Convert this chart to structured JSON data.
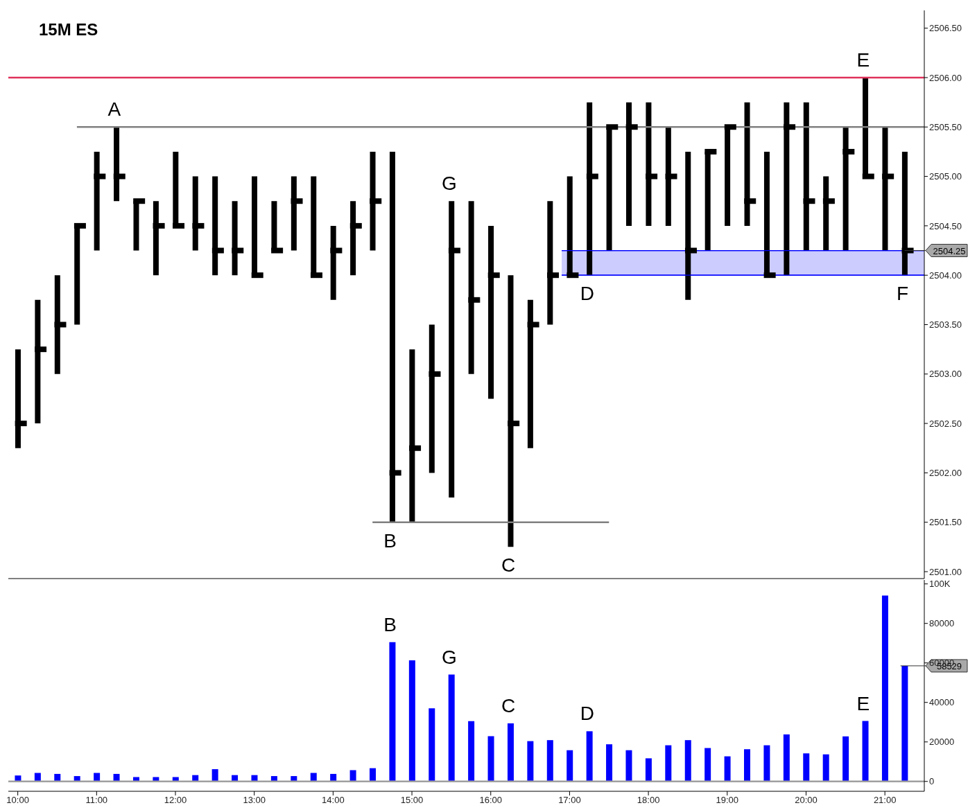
{
  "chart_data": [
    {
      "type": "bar",
      "title": "15M ES",
      "color": "#000000",
      "x": [
        10,
        10.25,
        10.5,
        10.75,
        11,
        11.25,
        11.5,
        11.75,
        12,
        12.25,
        12.5,
        12.75,
        13,
        13.25,
        13.5,
        13.75,
        14,
        14.25,
        14.5,
        14.75,
        15,
        15.25,
        15.5,
        15.75,
        16,
        16.25,
        16.5,
        16.75,
        17,
        17.25,
        17.5,
        17.75,
        18,
        18.25,
        18.5,
        18.75,
        19,
        19.25,
        19.5,
        19.75,
        20,
        20.25,
        20.5,
        20.75,
        21,
        21.25
      ],
      "base": [
        2502.25,
        2502.5,
        2503,
        2503.5,
        2504.25,
        2504.75,
        2504.25,
        2504,
        2504.5,
        2504.25,
        2504,
        2504,
        2504,
        2504.25,
        2504.25,
        2504,
        2503.75,
        2504,
        2504.25,
        2501.5,
        2501.5,
        2502,
        2501.75,
        2503,
        2502.75,
        2501.25,
        2502.25,
        2503.5,
        2504,
        2504,
        2504.25,
        2504.5,
        2504.5,
        2504.5,
        2503.75,
        2504.25,
        2504.5,
        2504.5,
        2504,
        2504,
        2504.25,
        2504.25,
        2504.25,
        2505,
        2504.25,
        2504
      ],
      "values": [
        1,
        1.25,
        1,
        1,
        1,
        0.75,
        0.5,
        0.75,
        0.75,
        0.75,
        1,
        0.75,
        1,
        0.5,
        0.75,
        1,
        0.75,
        0.75,
        1,
        3.75,
        1.75,
        1.5,
        3,
        1.75,
        1.75,
        2.75,
        1.5,
        1.25,
        1,
        1.75,
        1.25,
        1.25,
        1.25,
        1,
        1.5,
        1,
        1,
        1.25,
        1.25,
        1.75,
        1.5,
        0.75,
        1.25,
        1,
        1.25,
        1.25
      ],
      "xlim": [
        9.88,
        21.5
      ],
      "ylim": [
        2500.93,
        2506.68
      ],
      "yticks": [
        {
          "value": 2501,
          "label": "2501.00"
        },
        {
          "value": 2501.5,
          "label": "2501.50"
        },
        {
          "value": 2502,
          "label": "2502.00"
        },
        {
          "value": 2502.5,
          "label": "2502.50"
        },
        {
          "value": 2503,
          "label": "2503.00"
        },
        {
          "value": 2503.5,
          "label": "2503.50"
        },
        {
          "value": 2504,
          "label": "2504.00"
        },
        {
          "value": 2504.5,
          "label": "2504.50"
        },
        {
          "value": 2505,
          "label": "2505.00"
        },
        {
          "value": 2505.5,
          "label": "2505.50"
        },
        {
          "value": 2506,
          "label": "2506.00"
        },
        {
          "value": 2506.5,
          "label": "2506.50"
        }
      ],
      "tick_labels": "y",
      "ref_lines": [
        {
          "axis": "y",
          "value": 2506,
          "color": "#e0305a"
        }
      ],
      "series": [
        {
          "type": "line",
          "x": [
            10.75,
            21.5
          ],
          "values": [
            2505.5,
            2505.5
          ],
          "color": "#808080"
        },
        {
          "type": "line",
          "x": [
            14.5,
            17.5
          ],
          "values": [
            2501.5,
            2501.5
          ],
          "color": "#808080"
        },
        {
          "type": "line",
          "x": [
            16.9,
            21.5
          ],
          "values": [
            2504.25,
            2504.25
          ],
          "lower": [
            2504,
            2504
          ],
          "upper": [
            2504.25,
            2504.25
          ],
          "color": "#0000ff"
        },
        {
          "type": "scatter",
          "marker": "square",
          "color": "#000000",
          "x": [
            10,
            10.25,
            10.5,
            10.75,
            11,
            11.25,
            11.5,
            11.75,
            12,
            12.25,
            12.5,
            12.75,
            13,
            13.25,
            13.5,
            13.75,
            14,
            14.25,
            14.5,
            14.75,
            15,
            15.25,
            15.5,
            15.75,
            16,
            16.25,
            16.5,
            16.75,
            17,
            17.25,
            17.5,
            17.75,
            18,
            18.25,
            18.5,
            18.75,
            19,
            19.25,
            19.5,
            19.75,
            20,
            20.25,
            20.5,
            20.75,
            21,
            21.25
          ],
          "values": [
            2502.5,
            2503.25,
            2503.5,
            2504.5,
            2505,
            2505,
            2504.75,
            2504.5,
            2504.5,
            2504.5,
            2504.25,
            2504.25,
            2504,
            2504.25,
            2504.75,
            2504,
            2504.25,
            2504.5,
            2504.75,
            2502,
            2502.25,
            2503,
            2504.25,
            2503.75,
            2504,
            2502.5,
            2503.5,
            2504,
            2504,
            2505,
            2505.5,
            2505.5,
            2505,
            2505,
            2504.25,
            2505.25,
            2505.5,
            2504.75,
            2504,
            2505.5,
            2504.75,
            2504.75,
            2505.25,
            2505,
            2505,
            2504.25
          ]
        }
      ],
      "annotations": [
        {
          "text": "A",
          "x": 11.25,
          "y": 2505.5
        },
        {
          "text": "B",
          "x": 14.75,
          "y": 2501.5
        },
        {
          "text": "G",
          "x": 15.5,
          "y": 2504.75
        },
        {
          "text": "C",
          "x": 16.25,
          "y": 2501.25
        },
        {
          "text": "D",
          "x": 17.25,
          "y": 2504
        },
        {
          "text": "E",
          "x": 20.75,
          "y": 2506
        },
        {
          "text": "F",
          "x": 21.25,
          "y": 2504
        },
        {
          "text": "2504.25",
          "x": 21.25,
          "y": 2504.25
        }
      ]
    },
    {
      "type": "bar",
      "color": "#0000ff",
      "x": [
        10,
        10.25,
        10.5,
        10.75,
        11,
        11.25,
        11.5,
        11.75,
        12,
        12.25,
        12.5,
        12.75,
        13,
        13.25,
        13.5,
        13.75,
        14,
        14.25,
        14.5,
        14.75,
        15,
        15.25,
        15.5,
        15.75,
        16,
        16.25,
        16.5,
        16.75,
        17,
        17.25,
        17.5,
        17.75,
        18,
        18.25,
        18.5,
        18.75,
        19,
        19.25,
        19.5,
        19.75,
        20,
        20.25,
        20.5,
        20.75,
        21,
        21.25
      ],
      "values": [
        3000,
        4300,
        3800,
        2700,
        4300,
        3800,
        2200,
        2200,
        2200,
        3200,
        6200,
        3200,
        3200,
        2700,
        2700,
        4300,
        3800,
        5700,
        6700,
        70500,
        61300,
        37000,
        54100,
        30500,
        22900,
        29400,
        20400,
        20900,
        15800,
        25400,
        18800,
        15800,
        11700,
        18300,
        20900,
        16900,
        12700,
        16300,
        18300,
        23800,
        14200,
        13700,
        22800,
        30600,
        94100,
        58529
      ],
      "value_labels": [
        null,
        null,
        null,
        null,
        null,
        null,
        null,
        null,
        null,
        null,
        null,
        null,
        null,
        null,
        null,
        null,
        null,
        null,
        null,
        null,
        null,
        null,
        null,
        null,
        null,
        null,
        null,
        null,
        null,
        null,
        null,
        null,
        null,
        null,
        null,
        null,
        null,
        null,
        null,
        null,
        null,
        null,
        null,
        null,
        null,
        "58529"
      ],
      "xlim": [
        9.88,
        21.5
      ],
      "xticks": [
        {
          "value": 10,
          "label": "10:00"
        },
        {
          "value": 11,
          "label": "11:00"
        },
        {
          "value": 12,
          "label": "12:00"
        },
        {
          "value": 13,
          "label": "13:00"
        },
        {
          "value": 14,
          "label": "14:00"
        },
        {
          "value": 15,
          "label": "15:00"
        },
        {
          "value": 16,
          "label": "16:00"
        },
        {
          "value": 17,
          "label": "17:00"
        },
        {
          "value": 18,
          "label": "18:00"
        },
        {
          "value": 19,
          "label": "19:00"
        },
        {
          "value": 20,
          "label": "20:00"
        },
        {
          "value": 21,
          "label": "21:00"
        }
      ],
      "ylim": [
        -5000,
        102000
      ],
      "yticks": [
        0,
        20000,
        40000,
        60000,
        80000,
        {
          "value": 100000,
          "label": "100K"
        }
      ],
      "ref_lines": [
        {
          "axis": "y",
          "value": 0,
          "color": "#a0a0a0"
        }
      ],
      "annotations": [
        {
          "text": "B",
          "x": 14.75,
          "y": 70500
        },
        {
          "text": "G",
          "x": 15.5,
          "y": 54100
        },
        {
          "text": "C",
          "x": 16.25,
          "y": 29400
        },
        {
          "text": "D",
          "x": 17.25,
          "y": 25400
        },
        {
          "text": "E",
          "x": 20.75,
          "y": 30600
        }
      ]
    }
  ]
}
